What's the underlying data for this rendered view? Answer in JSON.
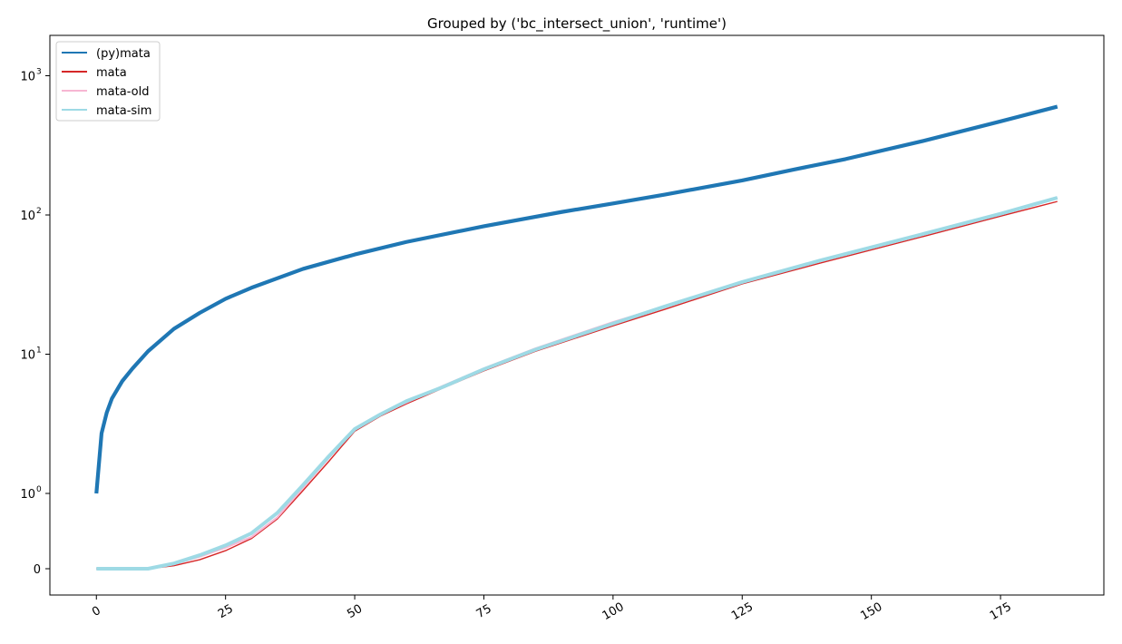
{
  "chart_data": {
    "type": "line",
    "title": "Grouped by ('bc_intersect_union', 'runtime')",
    "xlabel": "",
    "ylabel": "",
    "y_scale": "symlog",
    "xlim": [
      -9,
      195
    ],
    "x_ticks": [
      0,
      25,
      50,
      75,
      100,
      125,
      150,
      175
    ],
    "x_tick_labels": [
      "0",
      "25",
      "50",
      "75",
      "100",
      "125",
      "150",
      "175"
    ],
    "y_ticks": [
      {
        "base": "",
        "exp": "",
        "text": "0",
        "value": 0
      },
      {
        "base": "10",
        "exp": "0",
        "text": "",
        "value": 1
      },
      {
        "base": "10",
        "exp": "1",
        "text": "",
        "value": 10
      },
      {
        "base": "10",
        "exp": "2",
        "text": "",
        "value": 100
      },
      {
        "base": "10",
        "exp": "3",
        "text": "",
        "value": 1000
      }
    ],
    "grid": false,
    "legend_position": "top-left",
    "series": [
      {
        "name": "(py)mata",
        "color": "#1f77b4",
        "x": [
          0,
          1,
          2,
          3,
          5,
          7,
          10,
          15,
          20,
          25,
          30,
          40,
          50,
          60,
          75,
          90,
          100,
          110,
          125,
          135,
          145,
          160,
          175,
          186
        ],
        "y": [
          1.0,
          2.7,
          3.8,
          4.8,
          6.4,
          7.9,
          10.5,
          15.2,
          19.8,
          25.0,
          30.0,
          41.0,
          52.0,
          64.0,
          83.0,
          105.0,
          121.0,
          140.0,
          177.0,
          212.0,
          252.0,
          340.0,
          470.0,
          600.0
        ]
      },
      {
        "name": "mata",
        "color": "#d62728",
        "x": [
          0,
          5,
          10,
          15,
          20,
          25,
          30,
          35,
          40,
          45,
          50,
          55,
          60,
          67,
          75,
          85,
          100,
          110,
          125,
          140,
          160,
          175,
          186
        ],
        "y": [
          0.0,
          0.0,
          0.0,
          0.04,
          0.12,
          0.24,
          0.4,
          0.66,
          1.05,
          1.7,
          2.8,
          3.6,
          4.4,
          5.7,
          7.6,
          10.5,
          16.0,
          21.0,
          32.0,
          45.0,
          70.0,
          98.0,
          125.0
        ]
      },
      {
        "name": "mata-old",
        "color": "#f7b6d2",
        "x": [
          0,
          5,
          10,
          15,
          20,
          25,
          30,
          35,
          40,
          45,
          50,
          55,
          60,
          67,
          75,
          85,
          100,
          110,
          125,
          140,
          160,
          175,
          186
        ],
        "y": [
          0.0,
          0.0,
          0.0,
          0.06,
          0.16,
          0.28,
          0.42,
          0.68,
          1.1,
          1.8,
          2.9,
          3.7,
          4.5,
          5.9,
          7.9,
          11.0,
          17.0,
          22.0,
          33.0,
          47.0,
          73.0,
          102.0,
          133.0
        ]
      },
      {
        "name": "mata-sim",
        "color": "#9edae5",
        "x": [
          0,
          5,
          10,
          15,
          20,
          25,
          30,
          35,
          40,
          45,
          50,
          55,
          60,
          67,
          75,
          85,
          100,
          110,
          125,
          140,
          160,
          175,
          186
        ],
        "y": [
          0.0,
          0.0,
          0.0,
          0.07,
          0.18,
          0.31,
          0.47,
          0.74,
          1.15,
          1.85,
          2.9,
          3.7,
          4.6,
          5.8,
          7.8,
          10.8,
          16.6,
          22.0,
          33.0,
          47.0,
          73.0,
          102.0,
          133.0
        ]
      }
    ]
  }
}
